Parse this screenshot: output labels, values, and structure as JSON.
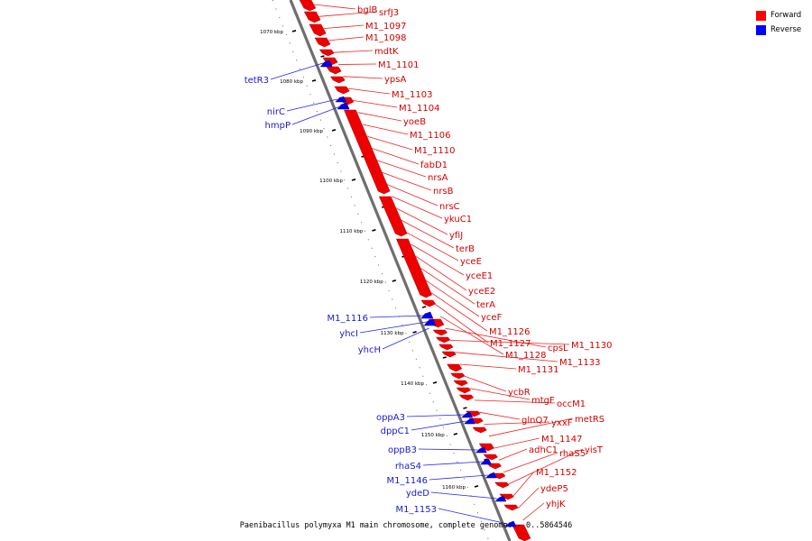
{
  "caption": "Paenibacillus polymyxa M1 main chromosome, complete genome. - 0..5864546",
  "legend": {
    "forward": {
      "label": "Forward",
      "color": "#ff0000"
    },
    "reverse": {
      "label": "Reverse",
      "color": "#0000ff"
    }
  },
  "ticks": [
    "1070 kbp",
    "1080 kbp",
    "1090 kbp",
    "1100 kbp",
    "1110 kbp",
    "1120 kbp",
    "1130 kbp",
    "1140 kbp",
    "1150 kbp",
    "1160 kbp"
  ],
  "forward_genes": [
    "bglB",
    "srfJ3",
    "M1_1097",
    "M1_1098",
    "mdtK",
    "M1_1101",
    "ypsA",
    "M1_1103",
    "M1_1104",
    "yoeB",
    "M1_1106",
    "M1_1110",
    "fabD1",
    "nrsA",
    "nrsB",
    "nrsC",
    "ykuC1",
    "yfiJ",
    "terB",
    "yceE",
    "yceE1",
    "yceE2",
    "terA",
    "yceF",
    "M1_1126",
    "M1_1127",
    "M1_1128",
    "cpsL",
    "M1_1130",
    "M1_1133",
    "M1_1131",
    "ycbR",
    "mtgF",
    "occM1",
    "glnQ7",
    "yxxF",
    "metRS",
    "M1_1147",
    "adhC1",
    "rhaS5",
    "yisT",
    "M1_1152",
    "ydeP5",
    "yhjK"
  ],
  "reverse_genes": [
    "tetR3",
    "nirC",
    "hmpP",
    "M1_1116",
    "yhcI",
    "yhcH",
    "oppA3",
    "dppC1",
    "oppB3",
    "rhaS4",
    "M1_1146",
    "ydeD",
    "M1_1153"
  ]
}
